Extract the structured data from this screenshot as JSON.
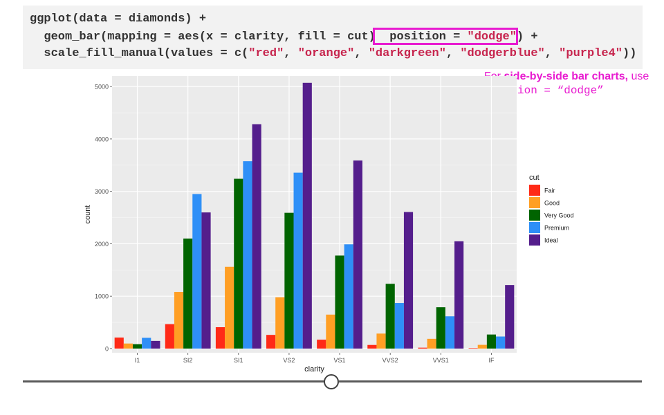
{
  "code": {
    "line1": "ggplot(data = diamonds) +",
    "line2_pre": "  geom_bar(mapping = aes(x = clarity, fill = cut) ",
    "line2_hl_pre": " position = ",
    "line2_hl_str": "\"dodge\"",
    "line2_hl_post": ")",
    "line2_post": " +",
    "line3_pre": "  scale_fill_manual(values = c(",
    "line3_s1": "\"red\"",
    "line3_s2": "\"orange\"",
    "line3_s3": "\"darkgreen\"",
    "line3_s4": "\"dodgerblue\"",
    "line3_s5": "\"purple4\"",
    "line3_sep": ", ",
    "line3_post": "))"
  },
  "note": {
    "prefix": "For ",
    "bold": "side-by-side bar charts,",
    "suffix": " use",
    "code": "position = “dodge”"
  },
  "colors": {
    "highlight": "#e81cd0",
    "panel_bg": "#ebebeb",
    "grid": "#ffffff"
  },
  "chart_data": {
    "type": "bar",
    "xlabel": "clarity",
    "ylabel": "count",
    "ylim": [
      -80,
      5200
    ],
    "yticks": [
      0,
      1000,
      2000,
      3000,
      4000,
      5000
    ],
    "grid": true,
    "legend_position": "right",
    "legend_title": "cut",
    "categories": [
      "I1",
      "SI2",
      "SI1",
      "VS2",
      "VS1",
      "VVS2",
      "VVS1",
      "IF"
    ],
    "series": [
      {
        "name": "Fair",
        "color": "#ff2a17",
        "values": [
          210,
          466,
          408,
          261,
          170,
          69,
          17,
          9
        ]
      },
      {
        "name": "Good",
        "color": "#ff9f24",
        "values": [
          96,
          1081,
          1560,
          978,
          648,
          286,
          186,
          71
        ]
      },
      {
        "name": "Very Good",
        "color": "#006400",
        "values": [
          84,
          2100,
          3240,
          2591,
          1775,
          1235,
          789,
          268
        ]
      },
      {
        "name": "Premium",
        "color": "#2e8ff7",
        "values": [
          205,
          2949,
          3575,
          3357,
          1989,
          870,
          616,
          230
        ]
      },
      {
        "name": "Ideal",
        "color": "#541e8c",
        "values": [
          146,
          2598,
          4282,
          5071,
          3589,
          2606,
          2047,
          1212
        ]
      }
    ]
  }
}
